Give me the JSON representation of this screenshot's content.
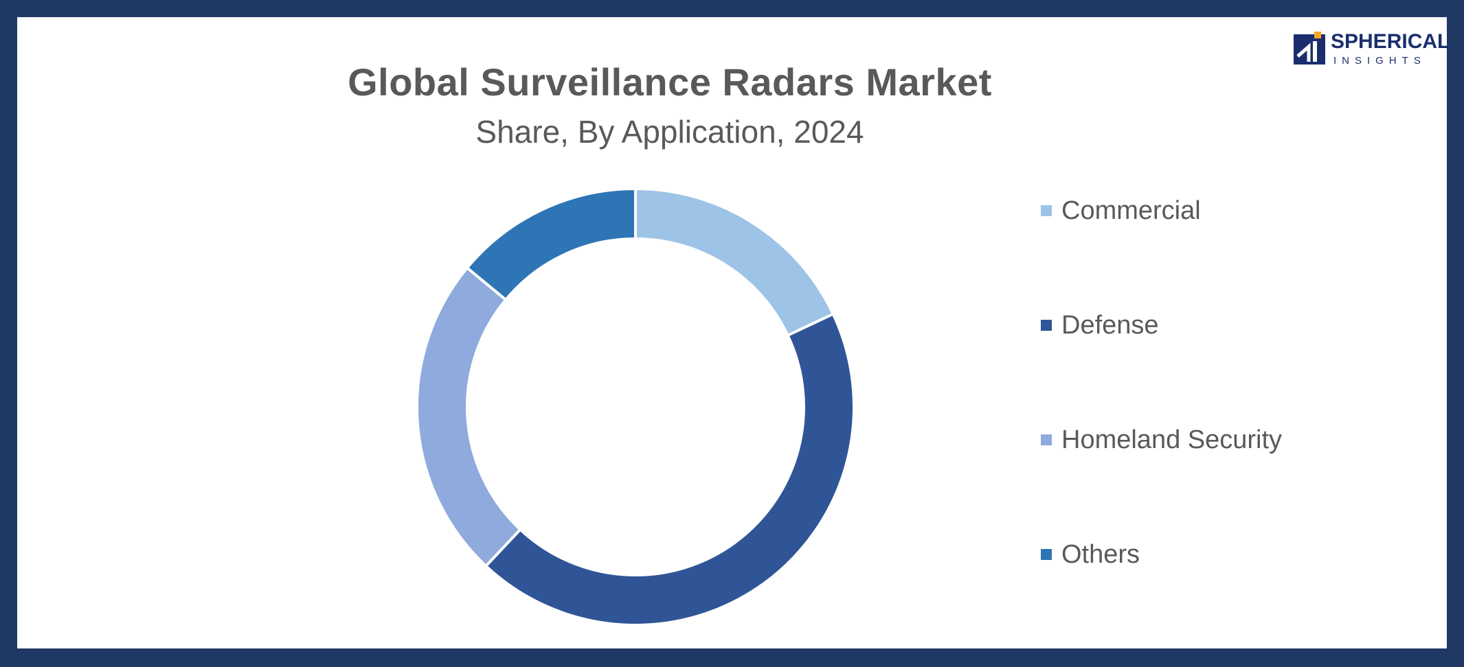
{
  "brand": {
    "name_line1": "SPHERICAL",
    "name_line2": "INSIGHTS",
    "primary_color": "#1a2e6e",
    "accent_color": "#f5a623"
  },
  "frame_color": "#1f3864",
  "chart_data": {
    "type": "pie",
    "variant": "donut",
    "title": "Global Surveillance Radars Market",
    "subtitle": "Share, By Application, 2024",
    "categories": [
      "Commercial",
      "Defense",
      "Homeland Security",
      "Others"
    ],
    "values": [
      18,
      44,
      24,
      14
    ],
    "colors": [
      "#9dc3e6",
      "#2f5597",
      "#8faadc",
      "#2e75b6"
    ],
    "legend_position": "right",
    "start_angle_deg": 0,
    "direction": "clockwise"
  }
}
